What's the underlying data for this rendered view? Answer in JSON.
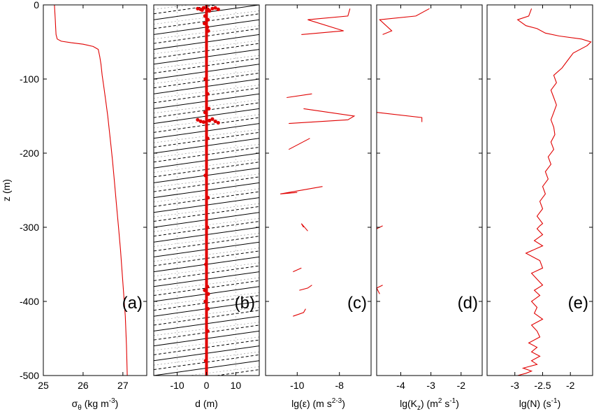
{
  "figure": {
    "y_axis": {
      "label": "z (m)",
      "ticks": [
        0,
        -100,
        -200,
        -300,
        -400,
        -500
      ],
      "ylim": [
        -500,
        0
      ]
    }
  },
  "chart_data": [
    {
      "type": "line",
      "panel_label": "(a)",
      "xlabel_main": "σ",
      "xlabel_sub": "θ",
      "xlabel_rest": " (kg m",
      "xlabel_sup": "-3",
      "xlabel_end": ")",
      "xlim": [
        25,
        27.6
      ],
      "xticks": [
        25,
        26,
        27
      ],
      "ylim": [
        -500,
        0
      ],
      "color": "#e00000",
      "series": [
        {
          "x": [
            25.28,
            25.29,
            25.3,
            25.31,
            25.32,
            25.35,
            25.45,
            25.7,
            26.0,
            26.25,
            26.38,
            26.42,
            26.45,
            26.48,
            26.52,
            26.57,
            26.62,
            26.66,
            26.7,
            26.74,
            26.79,
            26.84,
            26.89,
            26.94,
            26.98,
            27.02,
            27.06,
            27.09,
            27.11
          ],
          "y": [
            0,
            -10,
            -20,
            -30,
            -40,
            -46,
            -49,
            -51,
            -53,
            -56,
            -60,
            -70,
            -80,
            -95,
            -110,
            -130,
            -150,
            -170,
            -190,
            -210,
            -240,
            -270,
            -300,
            -330,
            -360,
            -390,
            -420,
            -460,
            -500
          ]
        }
      ]
    },
    {
      "type": "scatter",
      "panel_label": "(b)",
      "xlabel_main": "d (m)",
      "xlim": [
        -18,
        18
      ],
      "xticks": [
        -10,
        0,
        10
      ],
      "ylim": [
        -500,
        0
      ],
      "color": "#e00000",
      "series": [
        {
          "x": [
            -3,
            -2,
            -1.5,
            -1,
            0.5,
            1,
            2,
            3,
            4,
            -0.5,
            0.5,
            -0.7,
            0.3,
            0.6,
            -0.4,
            0.4,
            0.8,
            -0.5,
            -3,
            -2,
            -1,
            1,
            2,
            3,
            4,
            0.4,
            -0.4,
            0.5,
            0.3,
            -0.2,
            0.3,
            -0.6,
            0.6,
            -0.4,
            0.5,
            0.4,
            -0.3
          ],
          "y": [
            -5,
            -6,
            -7,
            -4,
            -6,
            -8,
            -5,
            -4,
            -6,
            -15,
            -20,
            -25,
            -30,
            -35,
            -100,
            -120,
            -140,
            -145,
            -155,
            -157,
            -158,
            -156,
            -154,
            -157,
            -159,
            -180,
            -230,
            -260,
            -300,
            -350,
            -380,
            -385,
            -390,
            -400,
            -410,
            -440,
            -480
          ]
        }
      ]
    },
    {
      "type": "line",
      "panel_label": "(c)",
      "xlabel_main": "lg(ε) (m",
      "xlabel_sup": "2",
      "xlabel_rest": " s",
      "xlabel_sup2": "-3",
      "xlabel_end": ")",
      "xlim": [
        -11.5,
        -6.5
      ],
      "xticks": [
        -10,
        -8
      ],
      "ylim": [
        -500,
        0
      ],
      "color": "#e00000",
      "series": [
        {
          "x": [
            -7.5,
            -7.6,
            -9.5,
            -7.8,
            -9.8
          ],
          "y": [
            -5,
            -15,
            -20,
            -35,
            -40
          ]
        },
        {
          "x": [
            -9.3,
            -10.5
          ],
          "y": [
            -120,
            -125
          ]
        },
        {
          "x": [
            -9.7,
            -7.3,
            -7.6,
            -10.4
          ],
          "y": [
            -140,
            -150,
            -155,
            -160
          ]
        },
        {
          "x": [
            -9.4,
            -10.4
          ],
          "y": [
            -180,
            -195
          ]
        },
        {
          "x": [
            -8.8,
            -10.8,
            -10.0
          ],
          "y": [
            -245,
            -255,
            -253
          ]
        },
        {
          "x": [
            -9.5,
            -9.8,
            -9.7
          ],
          "y": [
            -305,
            -295,
            -300
          ]
        },
        {
          "x": [
            -9.8,
            -10.2
          ],
          "y": [
            -355,
            -360
          ]
        },
        {
          "x": [
            -9.3,
            -9.5,
            -9.9
          ],
          "y": [
            -378,
            -382,
            -385
          ]
        },
        {
          "x": [
            -9.6,
            -9.7,
            -10.2
          ],
          "y": [
            -410,
            -415,
            -420
          ]
        }
      ]
    },
    {
      "type": "line",
      "panel_label": "(d)",
      "xlabel_main": "lg(K",
      "xlabel_sub": "z",
      "xlabel_rest": ") (m",
      "xlabel_sup": "2",
      "xlabel_rest2": " s",
      "xlabel_sup2": "-1",
      "xlabel_end": ")",
      "xlim": [
        -4.8,
        -1.3
      ],
      "xticks": [
        -4,
        -3,
        -2
      ],
      "ylim": [
        -500,
        0
      ],
      "color": "#e00000",
      "series": [
        {
          "x": [
            -3.05,
            -3.5,
            -4.7,
            -4.3,
            -4.6
          ],
          "y": [
            -5,
            -15,
            -20,
            -35,
            -40
          ]
        },
        {
          "x": [
            -4.8,
            -3.3,
            -3.3
          ],
          "y": [
            -145,
            -152,
            -158
          ]
        },
        {
          "x": [
            -4.6,
            -4.8
          ],
          "y": [
            -298,
            -302
          ]
        },
        {
          "x": [
            -4.6,
            -4.8,
            -4.7
          ],
          "y": [
            -378,
            -382,
            -390
          ]
        }
      ]
    },
    {
      "type": "line",
      "panel_label": "(e)",
      "xlabel_main": "lg(N) (s",
      "xlabel_sup": "-1",
      "xlabel_end": ")",
      "xlim": [
        -3.5,
        -1.6
      ],
      "xticks": [
        -3,
        -2.5,
        -2
      ],
      "ylim": [
        -500,
        0
      ],
      "color": "#e00000",
      "series": [
        {
          "x": [
            -2.7,
            -2.75,
            -2.95,
            -2.8,
            -2.6,
            -2.45,
            -2.2,
            -1.8,
            -1.63,
            -1.7,
            -1.95,
            -2.05,
            -2.15,
            -2.3,
            -2.25,
            -2.35,
            -2.3,
            -2.25,
            -2.3,
            -2.35,
            -2.3,
            -2.28,
            -2.35,
            -2.3,
            -2.4,
            -2.35,
            -2.45,
            -2.4,
            -2.5,
            -2.45,
            -2.55,
            -2.5,
            -2.6,
            -2.5,
            -2.55,
            -2.6,
            -2.5,
            -2.65,
            -2.5,
            -2.8,
            -2.55,
            -2.5,
            -2.7,
            -2.6,
            -2.5,
            -2.65,
            -2.55,
            -2.7,
            -2.6,
            -2.65,
            -2.5,
            -2.7,
            -2.6,
            -2.55,
            -2.75,
            -2.6,
            -2.7,
            -2.55,
            -2.7,
            -2.6,
            -2.85,
            -2.7,
            -2.8,
            -2.95
          ],
          "y": [
            -5,
            -15,
            -20,
            -28,
            -32,
            -38,
            -42,
            -46,
            -50,
            -55,
            -65,
            -75,
            -85,
            -95,
            -105,
            -115,
            -125,
            -135,
            -145,
            -155,
            -165,
            -175,
            -185,
            -195,
            -205,
            -215,
            -225,
            -235,
            -245,
            -255,
            -265,
            -275,
            -285,
            -295,
            -298,
            -302,
            -310,
            -318,
            -325,
            -335,
            -345,
            -355,
            -362,
            -370,
            -378,
            -385,
            -392,
            -400,
            -408,
            -416,
            -424,
            -432,
            -440,
            -448,
            -456,
            -462,
            -468,
            -474,
            -480,
            -485,
            -490,
            -494,
            -497,
            -500
          ]
        }
      ]
    }
  ]
}
